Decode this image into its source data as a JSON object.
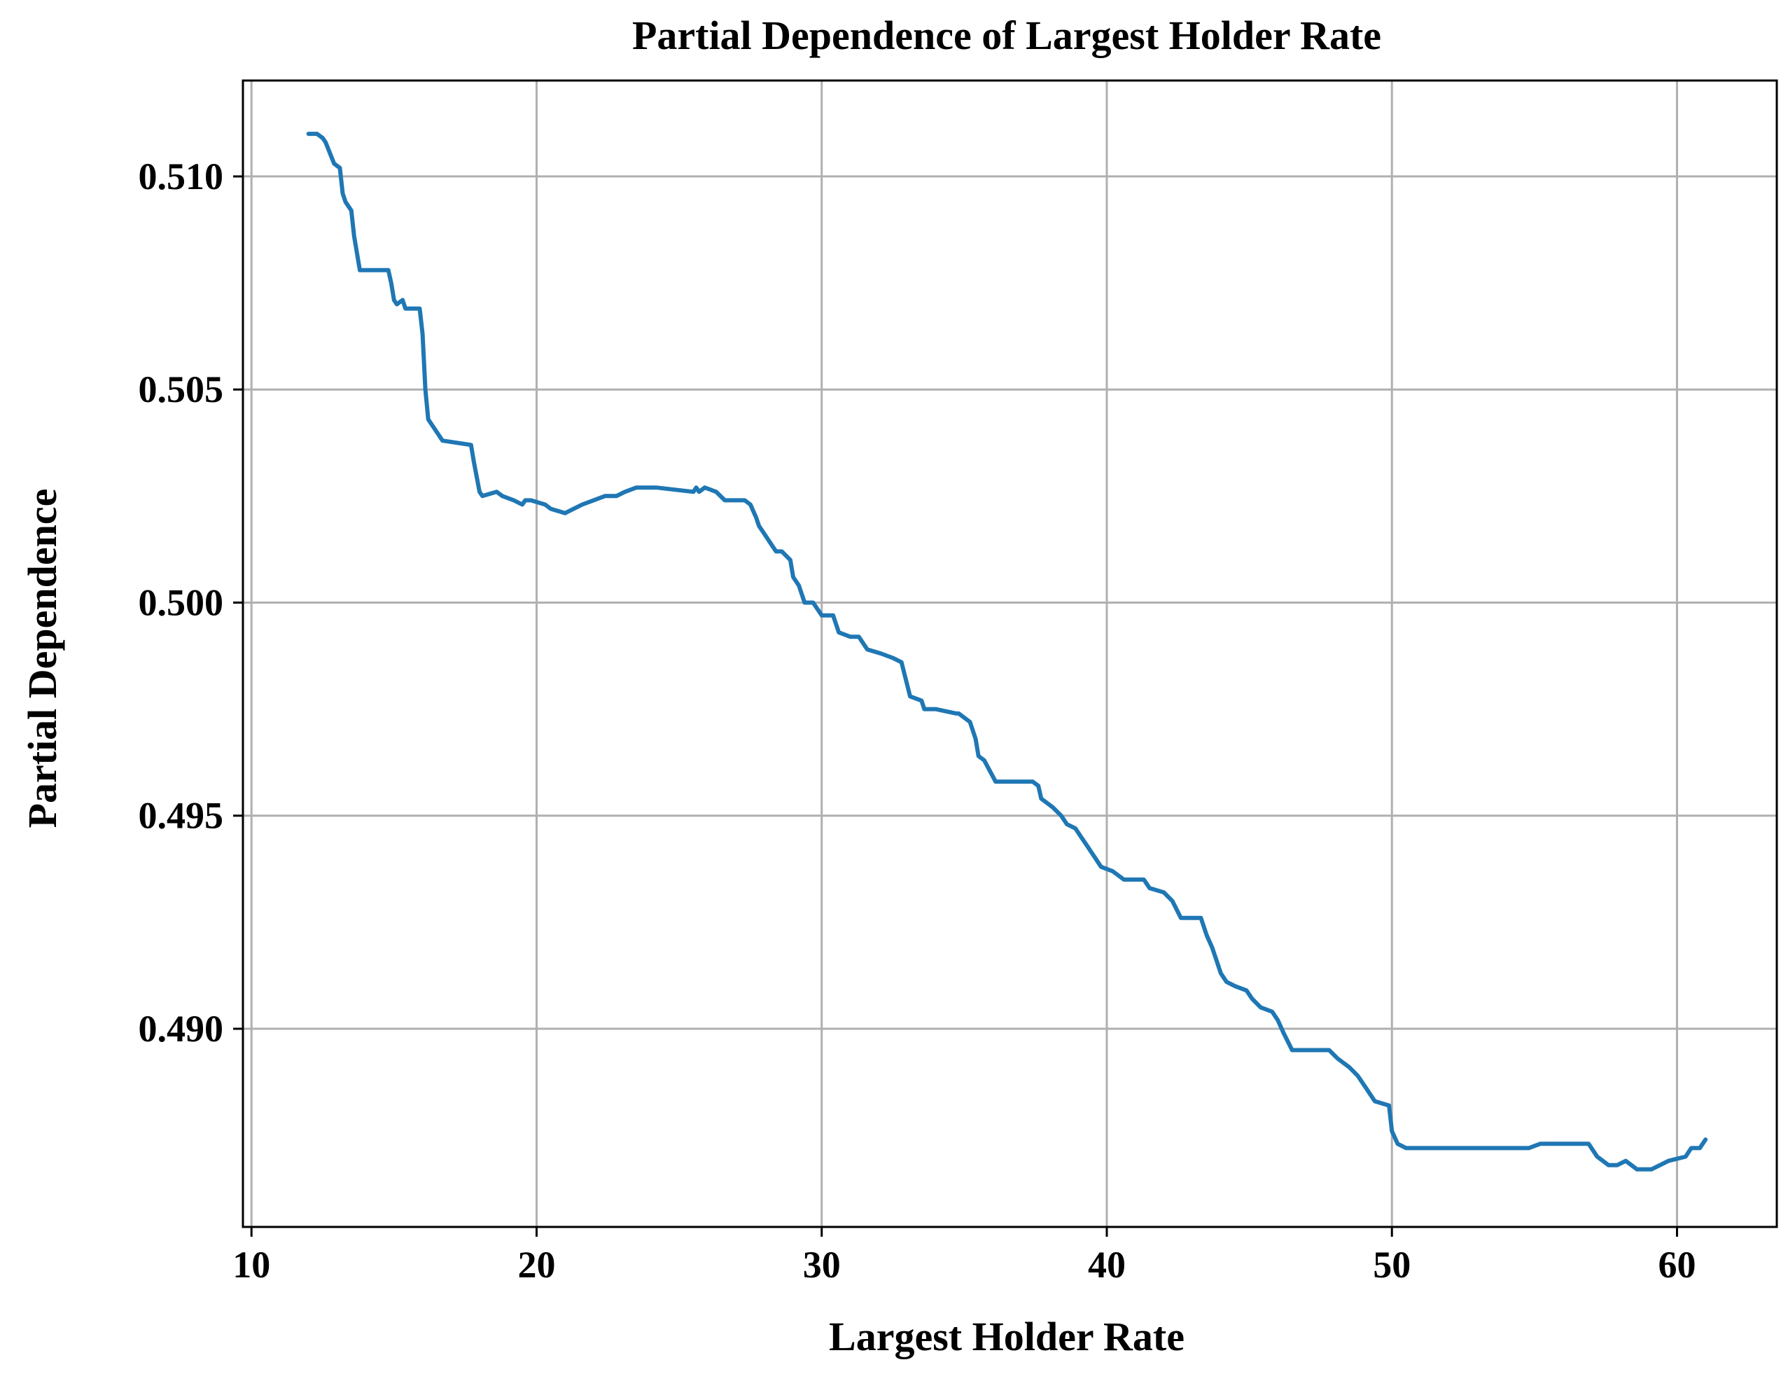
{
  "chart_data": {
    "type": "line",
    "title": "Partial Dependence of Largest Holder Rate",
    "xlabel": "Largest Holder Rate",
    "ylabel": "Partial Dependence",
    "xlim": [
      9.7,
      63.5
    ],
    "ylim": [
      0.48535,
      0.51225
    ],
    "x_ticks": [
      10,
      20,
      30,
      40,
      50,
      60
    ],
    "x_tick_labels": [
      "10",
      "20",
      "30",
      "40",
      "50",
      "60"
    ],
    "y_ticks": [
      0.49,
      0.495,
      0.5,
      0.505,
      0.51
    ],
    "y_tick_labels": [
      "0.490",
      "0.495",
      "0.500",
      "0.505",
      "0.510"
    ],
    "grid": true,
    "line_color": "#1f77b4",
    "series": [
      {
        "x": [
          12.0,
          12.3,
          12.5,
          12.6,
          12.9,
          13.1,
          13.2,
          13.3,
          13.5,
          13.6,
          13.8,
          14.8,
          14.9,
          15.0,
          15.1,
          15.3,
          15.4,
          15.9,
          16.0,
          16.1,
          16.2,
          16.4,
          16.7,
          17.7,
          17.8,
          18.0,
          18.1,
          18.6,
          18.8,
          19.2,
          19.5,
          19.6,
          19.8,
          20.3,
          20.5,
          21.0,
          21.3,
          21.6,
          22.0,
          22.4,
          22.8,
          23.1,
          23.5,
          23.8,
          24.2,
          25.5,
          25.6,
          25.7,
          25.9,
          26.3,
          26.6,
          27.1,
          27.3,
          27.5,
          27.7,
          27.8,
          28.0,
          28.3,
          28.4,
          28.6,
          28.9,
          29.0,
          29.2,
          29.4,
          29.7,
          30.0,
          30.4,
          30.6,
          31.0,
          31.3,
          31.6,
          32.1,
          32.5,
          32.8,
          33.1,
          33.5,
          33.6,
          34.0,
          34.7,
          34.8,
          35.2,
          35.4,
          35.5,
          35.7,
          36.1,
          37.4,
          37.6,
          37.7,
          38.1,
          38.4,
          38.6,
          38.9,
          39.1,
          39.3,
          39.6,
          39.8,
          40.2,
          40.6,
          41.3,
          41.5,
          42.0,
          42.3,
          42.6,
          43.3,
          43.5,
          43.7,
          43.8,
          44.0,
          44.2,
          44.5,
          44.9,
          45.1,
          45.4,
          45.8,
          46.0,
          46.2,
          46.5,
          47.0,
          47.8,
          48.1,
          48.5,
          48.8,
          49.1,
          49.4,
          49.9,
          50.0,
          50.2,
          50.5,
          51.0,
          52.5,
          53.8,
          54.8,
          55.2,
          56.0,
          56.7,
          56.9,
          57.2,
          57.6,
          57.9,
          58.2,
          58.6,
          58.9,
          59.1,
          59.4,
          59.7,
          60.3,
          60.5,
          60.8,
          61.0
        ],
        "y": [
          0.511,
          0.511,
          0.5109,
          0.5108,
          0.5103,
          0.5102,
          0.5096,
          0.5094,
          0.5092,
          0.5086,
          0.5078,
          0.5078,
          0.5075,
          0.5071,
          0.507,
          0.5071,
          0.5069,
          0.5069,
          0.5063,
          0.505,
          0.5043,
          0.5041,
          0.5038,
          0.5037,
          0.5033,
          0.5026,
          0.5025,
          0.5026,
          0.5025,
          0.5024,
          0.5023,
          0.5024,
          0.5024,
          0.5023,
          0.5022,
          0.5021,
          0.5022,
          0.5023,
          0.5024,
          0.5025,
          0.5025,
          0.5026,
          0.5027,
          0.5027,
          0.5027,
          0.5026,
          0.5027,
          0.5026,
          0.5027,
          0.5026,
          0.5024,
          0.5024,
          0.5024,
          0.5023,
          0.502,
          0.5018,
          0.5016,
          0.5013,
          0.5012,
          0.5012,
          0.501,
          0.5006,
          0.5004,
          0.5,
          0.5,
          0.4997,
          0.4997,
          0.4993,
          0.4992,
          0.4992,
          0.4989,
          0.4988,
          0.4987,
          0.4986,
          0.4978,
          0.4977,
          0.4975,
          0.4975,
          0.4974,
          0.4974,
          0.4972,
          0.4968,
          0.4964,
          0.4963,
          0.4958,
          0.4958,
          0.4957,
          0.4954,
          0.4952,
          0.495,
          0.4948,
          0.4947,
          0.4945,
          0.4943,
          0.494,
          0.4938,
          0.4937,
          0.4935,
          0.4935,
          0.4933,
          0.4932,
          0.493,
          0.4926,
          0.4926,
          0.4922,
          0.4919,
          0.4917,
          0.4913,
          0.4911,
          0.491,
          0.4909,
          0.4907,
          0.4905,
          0.4904,
          0.4902,
          0.4899,
          0.4895,
          0.4895,
          0.4895,
          0.4893,
          0.4891,
          0.4889,
          0.4886,
          0.4883,
          0.4882,
          0.4876,
          0.4873,
          0.4872,
          0.4872,
          0.4872,
          0.4872,
          0.4872,
          0.4873,
          0.4873,
          0.4873,
          0.4873,
          0.487,
          0.4868,
          0.4868,
          0.4869,
          0.4867,
          0.4867,
          0.4867,
          0.4868,
          0.4869,
          0.487,
          0.4872,
          0.4872,
          0.4874
        ]
      }
    ]
  }
}
